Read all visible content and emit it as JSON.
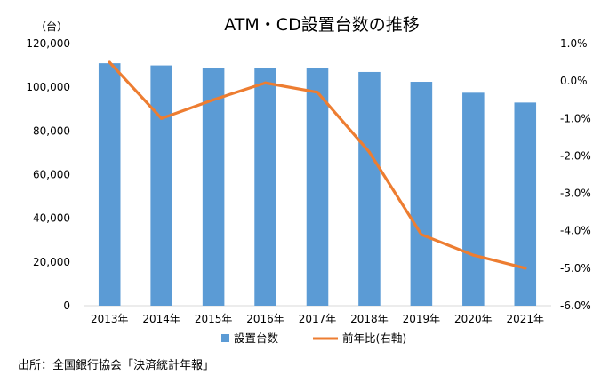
{
  "chart_data": {
    "type": "bar",
    "title": "ATM・CD設置台数の推移",
    "left_axis_unit": "（台）",
    "categories": [
      "2013年",
      "2014年",
      "2015年",
      "2016年",
      "2017年",
      "2018年",
      "2019年",
      "2020年",
      "2021年"
    ],
    "series": [
      {
        "name": "設置台数",
        "type": "bar",
        "axis": "left",
        "color": "#5B9BD5",
        "values": [
          111000,
          110000,
          109000,
          109000,
          108800,
          107000,
          102500,
          97500,
          93000
        ]
      },
      {
        "name": "前年比(右軸)",
        "type": "line",
        "axis": "right",
        "color": "#ED7D31",
        "values": [
          0.5,
          -1.0,
          -0.5,
          -0.05,
          -0.3,
          -1.9,
          -4.1,
          -4.65,
          -5.0
        ]
      }
    ],
    "left_axis": {
      "min": 0,
      "max": 120000,
      "step": 20000,
      "tick_labels": [
        "0",
        "20,000",
        "40,000",
        "60,000",
        "80,000",
        "100,000",
        "120,000"
      ]
    },
    "right_axis": {
      "min": -6.0,
      "max": 1.0,
      "step": 1.0,
      "tick_labels": [
        "-6.0%",
        "-5.0%",
        "-4.0%",
        "-3.0%",
        "-2.0%",
        "-1.0%",
        "0.0%",
        "1.0%"
      ]
    },
    "grid": false,
    "legend_position": "bottom"
  },
  "source_note": "出所：全国銀行協会「決済統計年報」"
}
